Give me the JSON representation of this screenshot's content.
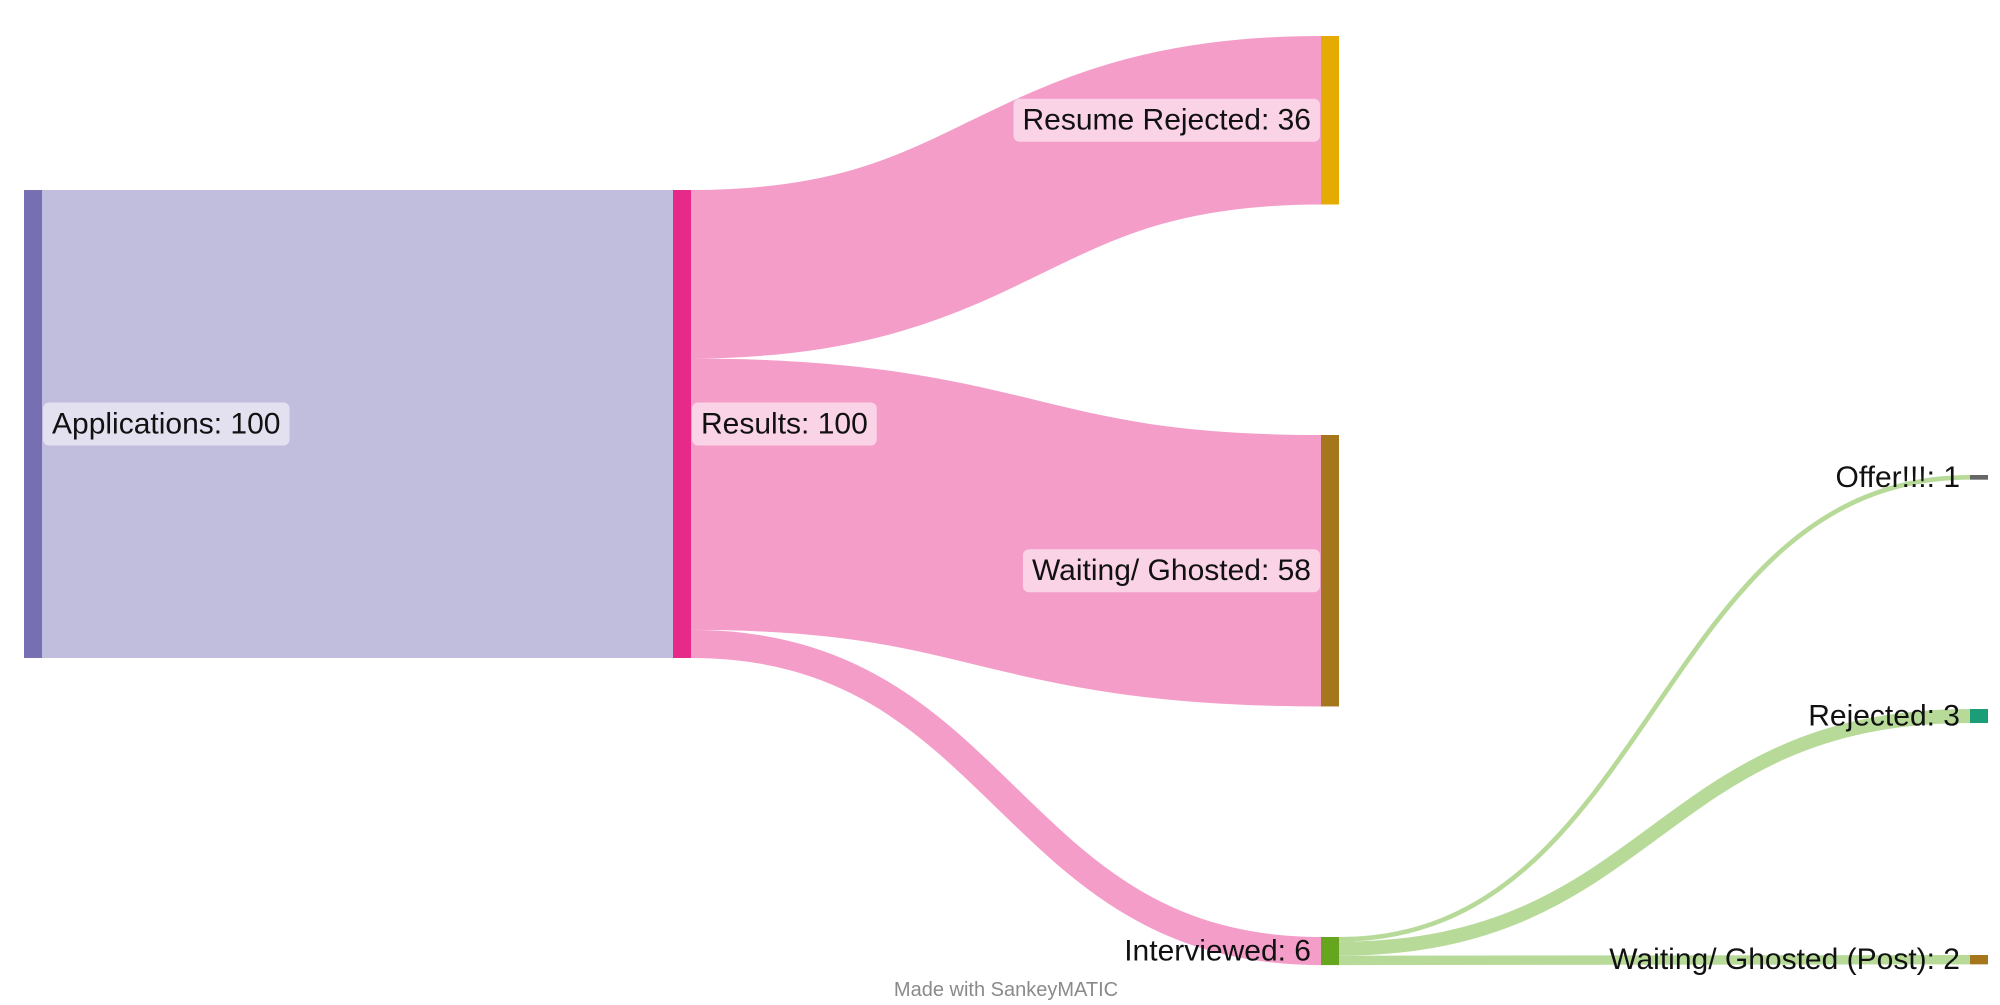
{
  "chart_data": {
    "type": "sankey",
    "title": "",
    "nodes": [
      {
        "id": "applications",
        "name": "Applications",
        "value": 100,
        "color": "#7670b3"
      },
      {
        "id": "results",
        "name": "Results",
        "value": 100,
        "color": "#e7298a"
      },
      {
        "id": "resume_rejected",
        "name": "Resume Rejected",
        "value": 36,
        "color": "#e6ab02"
      },
      {
        "id": "waiting_ghosted",
        "name": "Waiting/ Ghosted",
        "value": 58,
        "color": "#a6761d"
      },
      {
        "id": "interviewed",
        "name": "Interviewed",
        "value": 6,
        "color": "#66a61e"
      },
      {
        "id": "offer",
        "name": "Offer!!!",
        "value": 1,
        "color": "#666666"
      },
      {
        "id": "rejected",
        "name": "Rejected",
        "value": 3,
        "color": "#1b9e77"
      },
      {
        "id": "waiting_ghosted_post",
        "name": "Waiting/ Ghosted (Post)",
        "value": 2,
        "color": "#a6761d"
      }
    ],
    "links": [
      {
        "source": "applications",
        "target": "results",
        "value": 100,
        "color": "#c1bddd"
      },
      {
        "source": "results",
        "target": "resume_rejected",
        "value": 36,
        "color": "#f39dc8"
      },
      {
        "source": "results",
        "target": "waiting_ghosted",
        "value": 58,
        "color": "#f39dc8"
      },
      {
        "source": "results",
        "target": "interviewed",
        "value": 6,
        "color": "#f39dc8"
      },
      {
        "source": "interviewed",
        "target": "offer",
        "value": 1,
        "color": "#b7da99"
      },
      {
        "source": "interviewed",
        "target": "rejected",
        "value": 3,
        "color": "#b7da99"
      },
      {
        "source": "interviewed",
        "target": "waiting_ghosted_post",
        "value": 2,
        "color": "#b7da99"
      }
    ],
    "label_format": "{name}: {value}"
  },
  "footer": {
    "credit": "Made with SankeyMATIC"
  }
}
